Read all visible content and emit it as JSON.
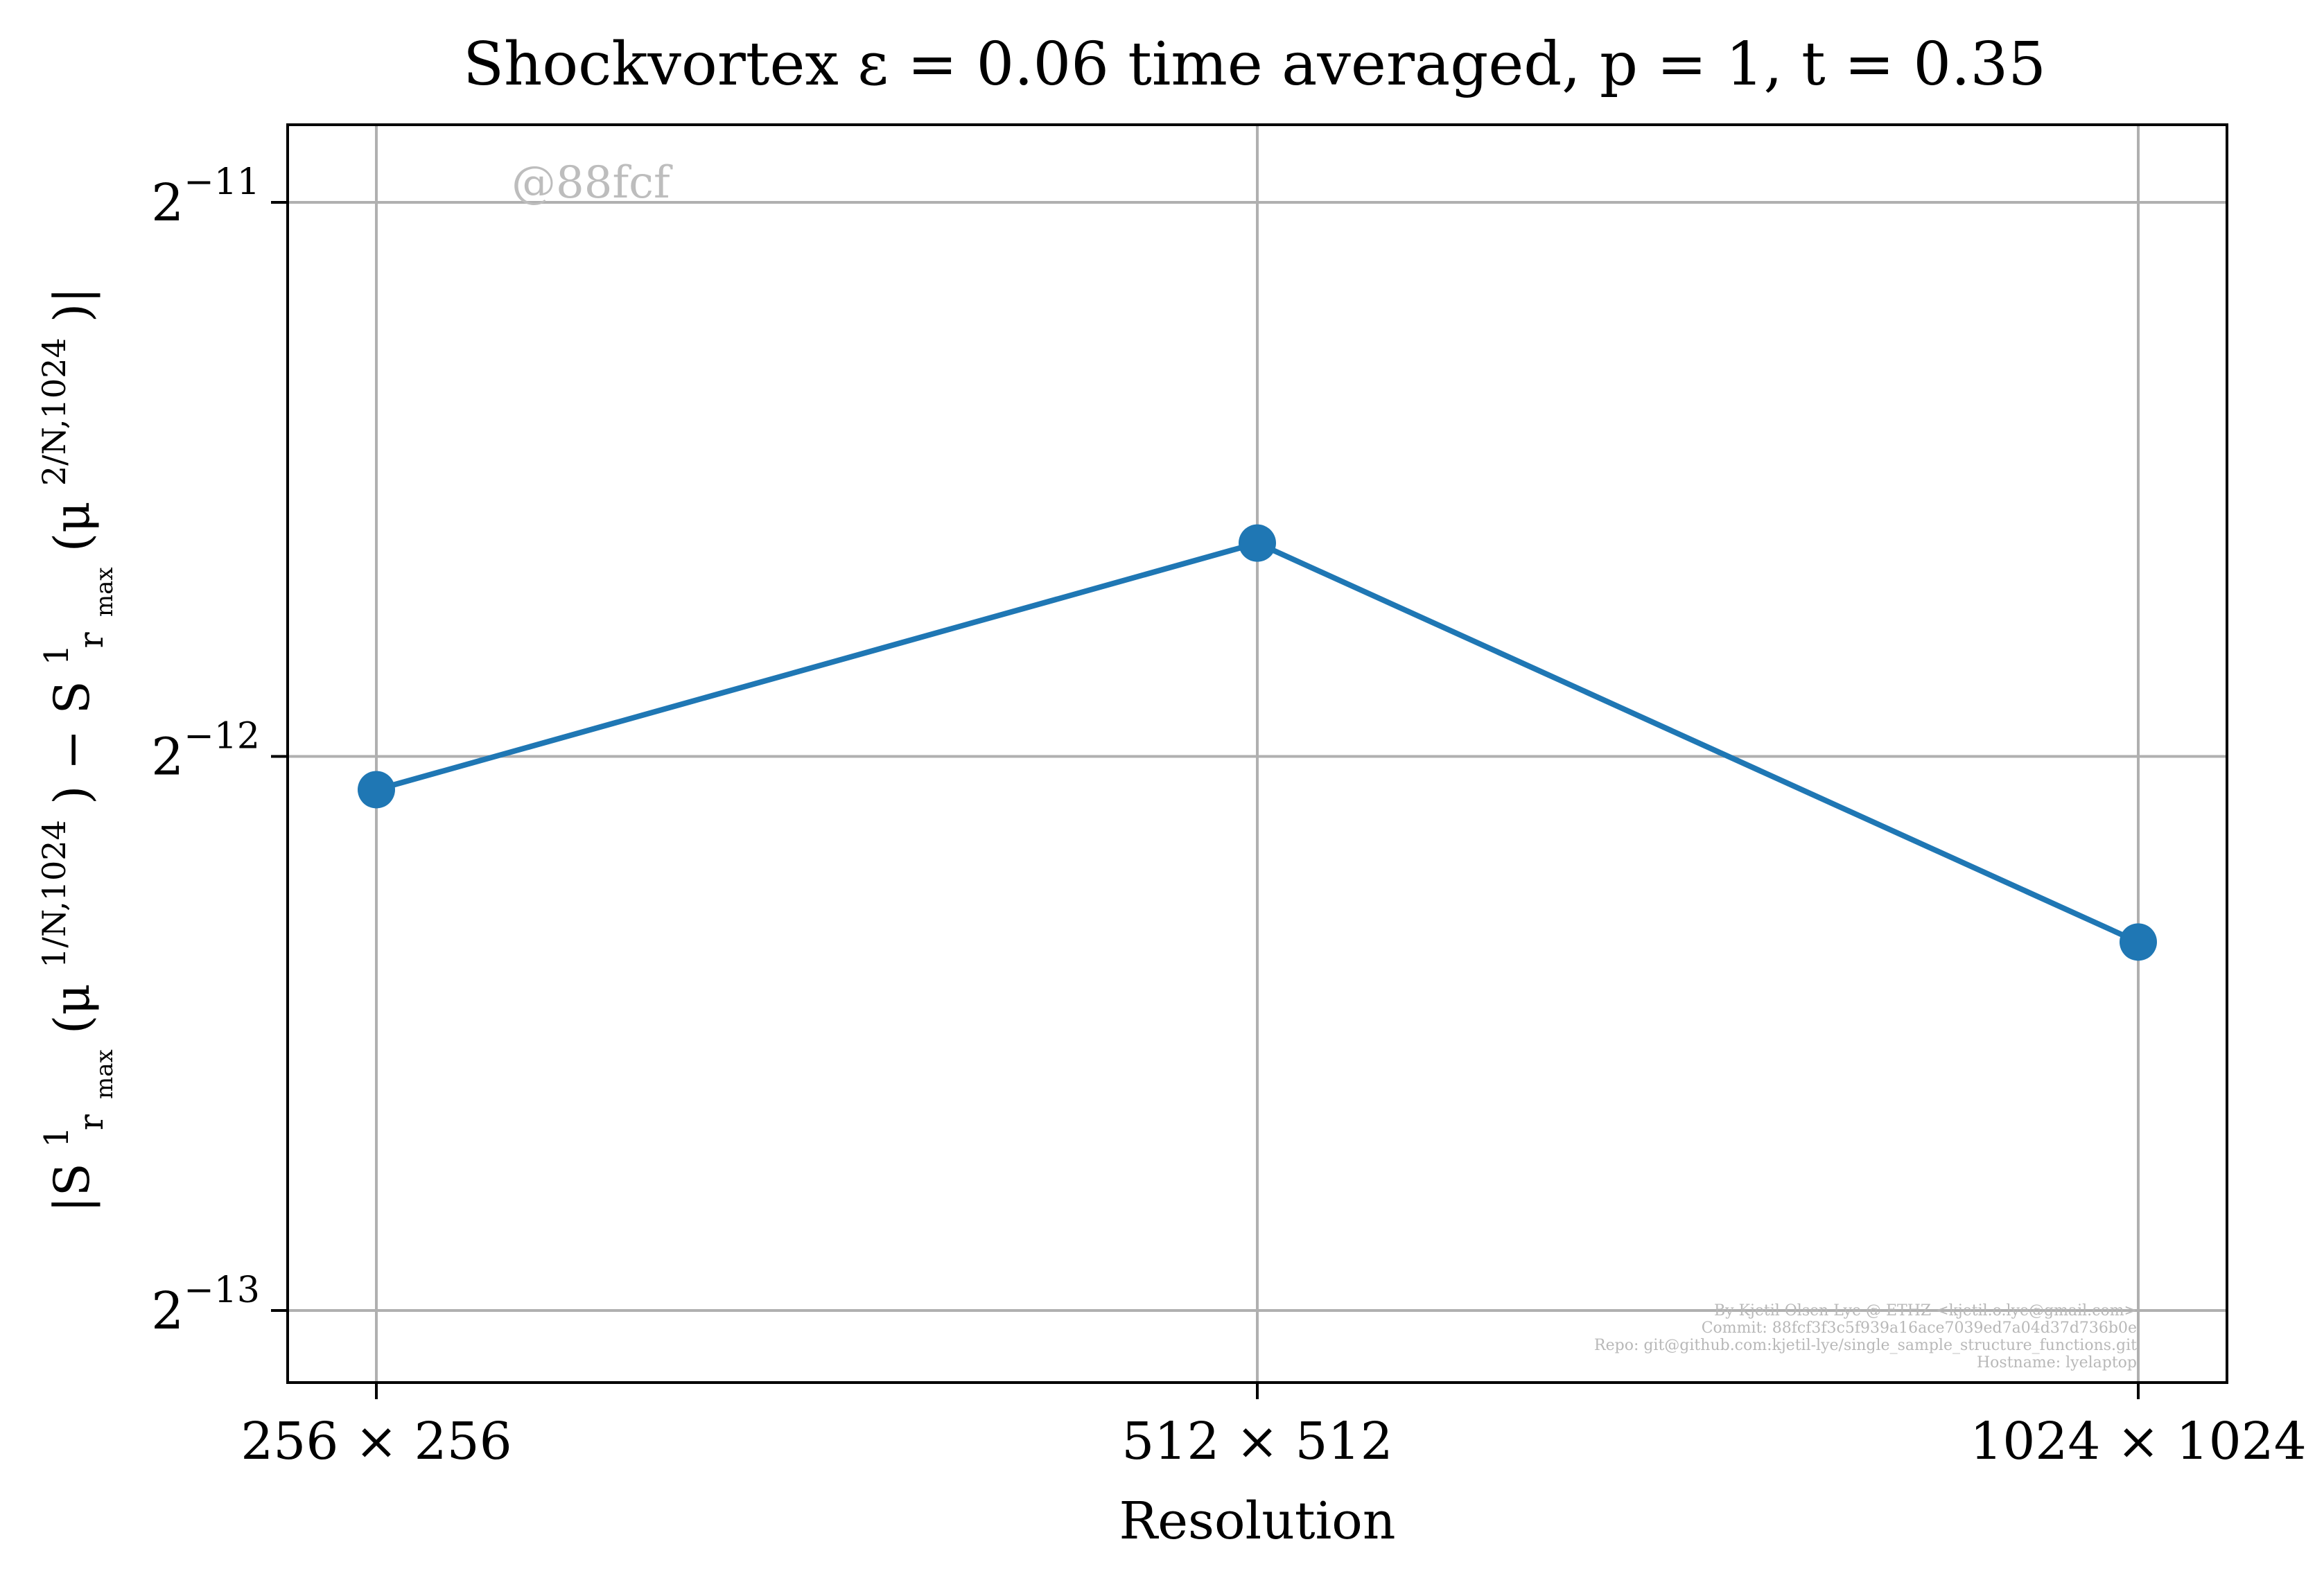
{
  "chart_data": {
    "type": "line",
    "title": "Shockvortex ε = 0.06 time averaged, p = 1, t = 0.35",
    "xlabel": "Resolution",
    "ylabel_parts": {
      "open": "|S",
      "sup1": "1",
      "sub1": "r",
      "subsub1": "max",
      "arg1_open": "(μ",
      "arg1_sup": "1/N,1024",
      "arg1_close": ") − S",
      "sup2": "1",
      "sub2": "r",
      "subsub2": "max",
      "arg2_open": "(μ",
      "arg2_sup": "2/N,1024",
      "arg2_close": ")|"
    },
    "yscale": "log2",
    "ylim_log2": [
      -13.13,
      -10.86
    ],
    "y_ticks": [
      {
        "base": "2",
        "exp": "−11",
        "log2": -11
      },
      {
        "base": "2",
        "exp": "−12",
        "log2": -12
      },
      {
        "base": "2",
        "exp": "−13",
        "log2": -13
      }
    ],
    "categories": [
      "256 × 256",
      "512 × 512",
      "1024 × 1024"
    ],
    "series": [
      {
        "color": "#1f77b4",
        "marker": "circle",
        "log2_values": [
          -12.06,
          -11.615,
          -12.335
        ]
      }
    ],
    "grid": true,
    "watermark": "@88fcf",
    "credits": [
      "By Kjetil Olsen Lye @ ETHZ <kjetil.o.lye@gmail.com>",
      "Commit: 88fcf3f3c5f939a16ace7039ed7a04d37d736b0e",
      "Repo: git@github.com:kjetil-lye/single_sample_structure_functions.git",
      "Hostname: lyelaptop"
    ]
  }
}
